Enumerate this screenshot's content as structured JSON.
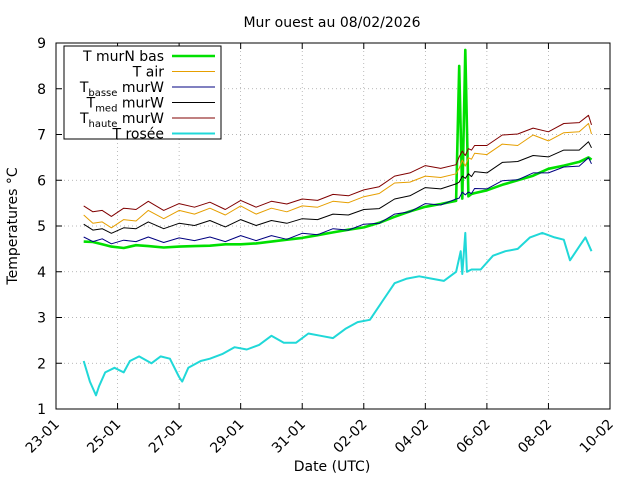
{
  "chart_data": {
    "type": "line",
    "title": "Mur ouest au 08/02/2026",
    "xlabel": "Date (UTC)",
    "ylabel": "Temperatures °C",
    "ylim": [
      1,
      9
    ],
    "y_ticks": [
      1,
      2,
      3,
      4,
      5,
      6,
      7,
      8,
      9
    ],
    "x_ticks": [
      "23-01",
      "25-01",
      "27-01",
      "29-01",
      "31-01",
      "02-02",
      "04-02",
      "06-02",
      "08-02",
      "10-02"
    ],
    "x_range_days": [
      0,
      18
    ],
    "legend_position": "top-left",
    "series": [
      {
        "name": "T murN bas",
        "label_main": "T murN bas",
        "label_sub": "",
        "label_suffix": "",
        "color": "#00e000",
        "width": 2.6,
        "x": [
          0.9,
          1.2,
          1.5,
          1.8,
          2.2,
          2.6,
          3.0,
          3.5,
          4.0,
          4.5,
          5.0,
          5.5,
          6.0,
          6.5,
          7.0,
          7.5,
          8.0,
          8.5,
          9.0,
          9.5,
          10.0,
          10.5,
          11.0,
          11.5,
          12.0,
          12.5,
          13.0,
          13.1,
          13.2,
          13.3,
          13.4,
          13.5,
          13.6,
          14.0,
          14.5,
          15.0,
          15.5,
          16.0,
          16.5,
          17.0,
          17.3,
          17.4
        ],
        "y": [
          4.66,
          4.65,
          4.6,
          4.55,
          4.52,
          4.58,
          4.56,
          4.53,
          4.55,
          4.56,
          4.57,
          4.6,
          4.6,
          4.62,
          4.66,
          4.7,
          4.74,
          4.8,
          4.86,
          4.92,
          4.97,
          5.07,
          5.2,
          5.32,
          5.42,
          5.48,
          5.55,
          8.5,
          5.6,
          8.85,
          5.65,
          5.7,
          5.72,
          5.78,
          5.9,
          6.0,
          6.1,
          6.25,
          6.32,
          6.4,
          6.5,
          6.45
        ]
      },
      {
        "name": "T air",
        "label_main": "T air",
        "label_sub": "",
        "label_suffix": "",
        "color": "#e69f00",
        "width": 1,
        "x": [
          0.9,
          1.2,
          1.5,
          1.8,
          2.2,
          2.6,
          3.0,
          3.5,
          4.0,
          4.5,
          5.0,
          5.5,
          6.0,
          6.5,
          7.0,
          7.5,
          8.0,
          8.5,
          9.0,
          9.5,
          10.0,
          10.5,
          11.0,
          11.5,
          12.0,
          12.5,
          13.0,
          13.1,
          13.2,
          13.3,
          13.4,
          13.5,
          13.6,
          14.0,
          14.5,
          15.0,
          15.5,
          16.0,
          16.5,
          17.0,
          17.3,
          17.4
        ],
        "y": [
          5.2,
          5.1,
          5.05,
          5.0,
          5.1,
          5.15,
          5.3,
          5.2,
          5.3,
          5.3,
          5.35,
          5.28,
          5.4,
          5.3,
          5.35,
          5.35,
          5.4,
          5.45,
          5.5,
          5.55,
          5.6,
          5.75,
          5.9,
          6.0,
          6.05,
          6.1,
          6.1,
          6.3,
          6.4,
          6.35,
          6.45,
          6.5,
          6.55,
          6.6,
          6.75,
          6.8,
          6.95,
          6.9,
          7.0,
          7.1,
          7.2,
          7.05
        ]
      },
      {
        "name": "Tbasse murW",
        "label_main": "T",
        "label_sub": "basse",
        "label_suffix": " murW",
        "color": "#000080",
        "width": 1,
        "x": [
          0.9,
          1.2,
          1.5,
          1.8,
          2.2,
          2.6,
          3.0,
          3.5,
          4.0,
          4.5,
          5.0,
          5.5,
          6.0,
          6.5,
          7.0,
          7.5,
          8.0,
          8.5,
          9.0,
          9.5,
          10.0,
          10.5,
          11.0,
          11.5,
          12.0,
          12.5,
          13.0,
          13.1,
          13.2,
          13.3,
          13.4,
          13.5,
          13.6,
          14.0,
          14.5,
          15.0,
          15.5,
          16.0,
          16.5,
          17.0,
          17.3,
          17.4
        ],
        "y": [
          4.72,
          4.7,
          4.68,
          4.65,
          4.65,
          4.7,
          4.72,
          4.68,
          4.7,
          4.72,
          4.72,
          4.7,
          4.75,
          4.72,
          4.75,
          4.75,
          4.8,
          4.85,
          4.9,
          4.95,
          5.0,
          5.1,
          5.22,
          5.35,
          5.45,
          5.5,
          5.55,
          5.65,
          5.7,
          5.72,
          5.7,
          5.75,
          5.78,
          5.85,
          5.95,
          6.05,
          6.12,
          6.2,
          6.25,
          6.35,
          6.45,
          6.4
        ]
      },
      {
        "name": "Tmed murW",
        "label_main": "T",
        "label_sub": "med",
        "label_suffix": " murW",
        "color": "#000000",
        "width": 1,
        "x": [
          0.9,
          1.2,
          1.5,
          1.8,
          2.2,
          2.6,
          3.0,
          3.5,
          4.0,
          4.5,
          5.0,
          5.5,
          6.0,
          6.5,
          7.0,
          7.5,
          8.0,
          8.5,
          9.0,
          9.5,
          10.0,
          10.5,
          11.0,
          11.5,
          12.0,
          12.5,
          13.0,
          13.1,
          13.2,
          13.3,
          13.4,
          13.5,
          13.6,
          14.0,
          14.5,
          15.0,
          15.5,
          16.0,
          16.5,
          17.0,
          17.3,
          17.4
        ],
        "y": [
          5.0,
          4.95,
          4.9,
          4.88,
          4.92,
          4.98,
          5.05,
          4.98,
          5.02,
          5.05,
          5.08,
          5.02,
          5.1,
          5.05,
          5.08,
          5.1,
          5.12,
          5.18,
          5.22,
          5.28,
          5.32,
          5.42,
          5.55,
          5.7,
          5.8,
          5.85,
          5.88,
          6.0,
          6.05,
          6.08,
          6.1,
          6.12,
          6.15,
          6.2,
          6.35,
          6.45,
          6.5,
          6.55,
          6.62,
          6.7,
          6.8,
          6.75
        ]
      },
      {
        "name": "Thaute murW",
        "label_main": "T",
        "label_sub": "haute",
        "label_suffix": " murW",
        "color": "#800000",
        "width": 1,
        "x": [
          0.9,
          1.2,
          1.5,
          1.8,
          2.2,
          2.6,
          3.0,
          3.5,
          4.0,
          4.5,
          5.0,
          5.5,
          6.0,
          6.5,
          7.0,
          7.5,
          8.0,
          8.5,
          9.0,
          9.5,
          10.0,
          10.5,
          11.0,
          11.5,
          12.0,
          12.5,
          13.0,
          13.1,
          13.2,
          13.3,
          13.4,
          13.5,
          13.6,
          14.0,
          14.5,
          15.0,
          15.5,
          16.0,
          16.5,
          17.0,
          17.3,
          17.4
        ],
        "y": [
          5.4,
          5.35,
          5.3,
          5.25,
          5.35,
          5.4,
          5.5,
          5.38,
          5.45,
          5.45,
          5.48,
          5.4,
          5.52,
          5.45,
          5.5,
          5.52,
          5.55,
          5.6,
          5.65,
          5.7,
          5.75,
          5.9,
          6.05,
          6.2,
          6.28,
          6.3,
          6.3,
          6.55,
          6.6,
          6.58,
          6.65,
          6.7,
          6.72,
          6.8,
          6.95,
          7.05,
          7.1,
          7.1,
          7.2,
          7.3,
          7.38,
          7.25
        ]
      },
      {
        "name": "T rosée",
        "label_main": "T rosée",
        "label_sub": "",
        "label_suffix": "",
        "color": "#20d8d8",
        "width": 2,
        "x": [
          0.9,
          1.1,
          1.3,
          1.4,
          1.6,
          1.9,
          2.2,
          2.4,
          2.7,
          3.1,
          3.4,
          3.7,
          4.0,
          4.1,
          4.3,
          4.7,
          5.0,
          5.4,
          5.8,
          6.2,
          6.6,
          7.0,
          7.4,
          7.8,
          8.2,
          8.6,
          9.0,
          9.4,
          9.8,
          10.2,
          10.6,
          11.0,
          11.4,
          11.8,
          12.2,
          12.6,
          13.0,
          13.1,
          13.15,
          13.2,
          13.3,
          13.35,
          13.5,
          13.8,
          14.2,
          14.6,
          15.0,
          15.4,
          15.8,
          16.2,
          16.5,
          16.7,
          17.0,
          17.2,
          17.4
        ],
        "y": [
          2.05,
          1.6,
          1.3,
          1.5,
          1.8,
          1.9,
          1.8,
          2.05,
          2.15,
          2.0,
          2.15,
          2.1,
          1.7,
          1.6,
          1.9,
          2.05,
          2.1,
          2.2,
          2.35,
          2.3,
          2.4,
          2.6,
          2.45,
          2.45,
          2.65,
          2.6,
          2.55,
          2.75,
          2.9,
          2.95,
          3.35,
          3.75,
          3.85,
          3.9,
          3.85,
          3.8,
          4.0,
          4.3,
          4.45,
          3.95,
          4.85,
          4.0,
          4.05,
          4.05,
          4.35,
          4.45,
          4.5,
          4.75,
          4.85,
          4.75,
          4.7,
          4.25,
          4.55,
          4.75,
          4.45
        ]
      }
    ]
  }
}
